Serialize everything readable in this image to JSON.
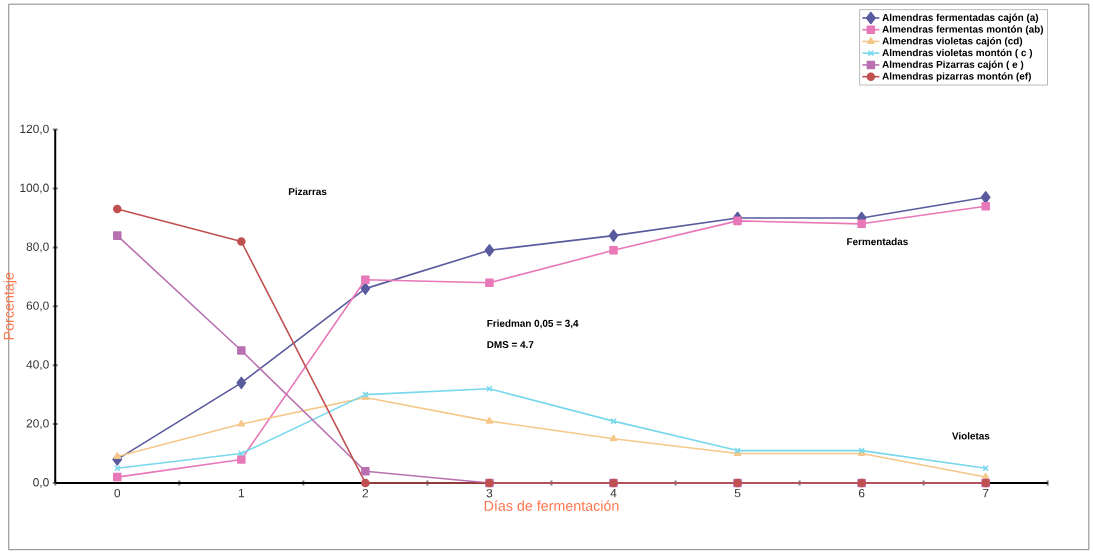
{
  "chart_data": {
    "type": "line",
    "xlabel": "Días de fermentación",
    "ylabel": "Porcentaje",
    "categories": [
      "0",
      "1",
      "2",
      "3",
      "4",
      "5",
      "6",
      "7"
    ],
    "ylim": [
      0,
      120
    ],
    "yticks": [
      {
        "value": 0,
        "label": "0,0"
      },
      {
        "value": 20,
        "label": "20,0"
      },
      {
        "value": 40,
        "label": "40,0"
      },
      {
        "value": 60,
        "label": "60,0"
      },
      {
        "value": 80,
        "label": "80,0"
      },
      {
        "value": 100,
        "label": "100,0"
      },
      {
        "value": 120,
        "label": "120,0"
      }
    ],
    "series": [
      {
        "name": "Almendras fermentadas cajón (a)",
        "color": "#5a5a9e",
        "marker": "diamond",
        "values": [
          8,
          34,
          66,
          79,
          84,
          90,
          90,
          97
        ]
      },
      {
        "name": "Almendras fermentas montón (ab)",
        "color": "#e878b8",
        "marker": "square",
        "values": [
          2,
          8,
          69,
          68,
          79,
          89,
          88,
          94
        ]
      },
      {
        "name": "Almendras violetas cajón (cd)",
        "color": "#f5c88a",
        "marker": "triangle",
        "values": [
          9,
          20,
          29,
          21,
          15,
          10,
          10,
          2
        ]
      },
      {
        "name": "Almendras violetas montón ( c )",
        "color": "#78d8ec",
        "marker": "cross",
        "values": [
          5,
          10,
          30,
          32,
          21,
          11,
          11,
          5
        ]
      },
      {
        "name": "Almendras Pizarras cajón ( e )",
        "color": "#b870b0",
        "marker": "square",
        "values": [
          84,
          45,
          4,
          0,
          0,
          0,
          0,
          0
        ]
      },
      {
        "name": "Almendras pizarras montón (ef)",
        "color": "#c05050",
        "marker": "circle",
        "values": [
          93,
          82,
          0,
          0,
          0,
          0,
          0,
          0
        ]
      }
    ],
    "legend": "top right",
    "annotations": [
      "Pizarras",
      "Fermentadas",
      "Violetas",
      "Friedman 0,05 = 3,4",
      "DMS = 4.7"
    ]
  }
}
